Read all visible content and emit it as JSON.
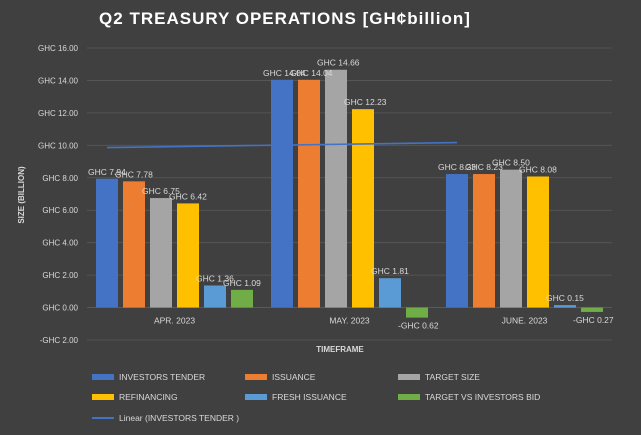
{
  "chart_data": {
    "type": "bar",
    "title": "Q2 TREASURY OPERATIONS [GH¢billion]",
    "xlabel": "TIMEFRAME",
    "ylabel": "SIZE (BILLION)",
    "ylim": [
      -2,
      16
    ],
    "ytick_step": 2,
    "ytick_prefix": "GHC ",
    "categories": [
      "APR. 2023",
      "MAY. 2023",
      "JUNE. 2023"
    ],
    "series": [
      {
        "name": "INVESTORS TENDER",
        "color": "#4472C4",
        "values": [
          7.94,
          14.04,
          8.23
        ],
        "labels": [
          "GHC 7.94",
          "GHC 14.04",
          "GHC 8.23"
        ]
      },
      {
        "name": "ISSUANCE",
        "color": "#ED7D31",
        "values": [
          7.78,
          14.04,
          8.23
        ],
        "labels": [
          "GHC 7.78",
          "GHC 14.04",
          "GHC 8.23"
        ]
      },
      {
        "name": "TARGET SIZE",
        "color": "#A5A5A5",
        "values": [
          6.75,
          14.66,
          8.5
        ],
        "labels": [
          "GHC 6.75",
          "GHC 14.66",
          "GHC 8.50"
        ]
      },
      {
        "name": "REFINANCING",
        "color": "#FFC000",
        "values": [
          6.42,
          12.23,
          8.08
        ],
        "labels": [
          "GHC 6.42",
          "GHC 12.23",
          "GHC 8.08"
        ]
      },
      {
        "name": "FRESH ISSUANCE",
        "color": "#5B9BD5",
        "values": [
          1.36,
          1.81,
          0.15
        ],
        "labels": [
          "GHC 1.36",
          "GHC 1.81",
          "GHC 0.15"
        ]
      },
      {
        "name": "TARGET VS INVESTORS BID",
        "color": "#70AD47",
        "values": [
          1.09,
          -0.62,
          -0.27
        ],
        "labels": [
          "GHC 1.09",
          "-GHC 0.62",
          "-GHC 0.27"
        ]
      }
    ],
    "trendline": {
      "name": "Linear (INVESTORS TENDER )",
      "color": "#4472C4",
      "start": 9.86,
      "end": 10.17
    },
    "legend_position": "bottom",
    "grid": true,
    "colors": {
      "background": "#404040",
      "text": "#D9D9D9",
      "grid": "#595959"
    }
  }
}
